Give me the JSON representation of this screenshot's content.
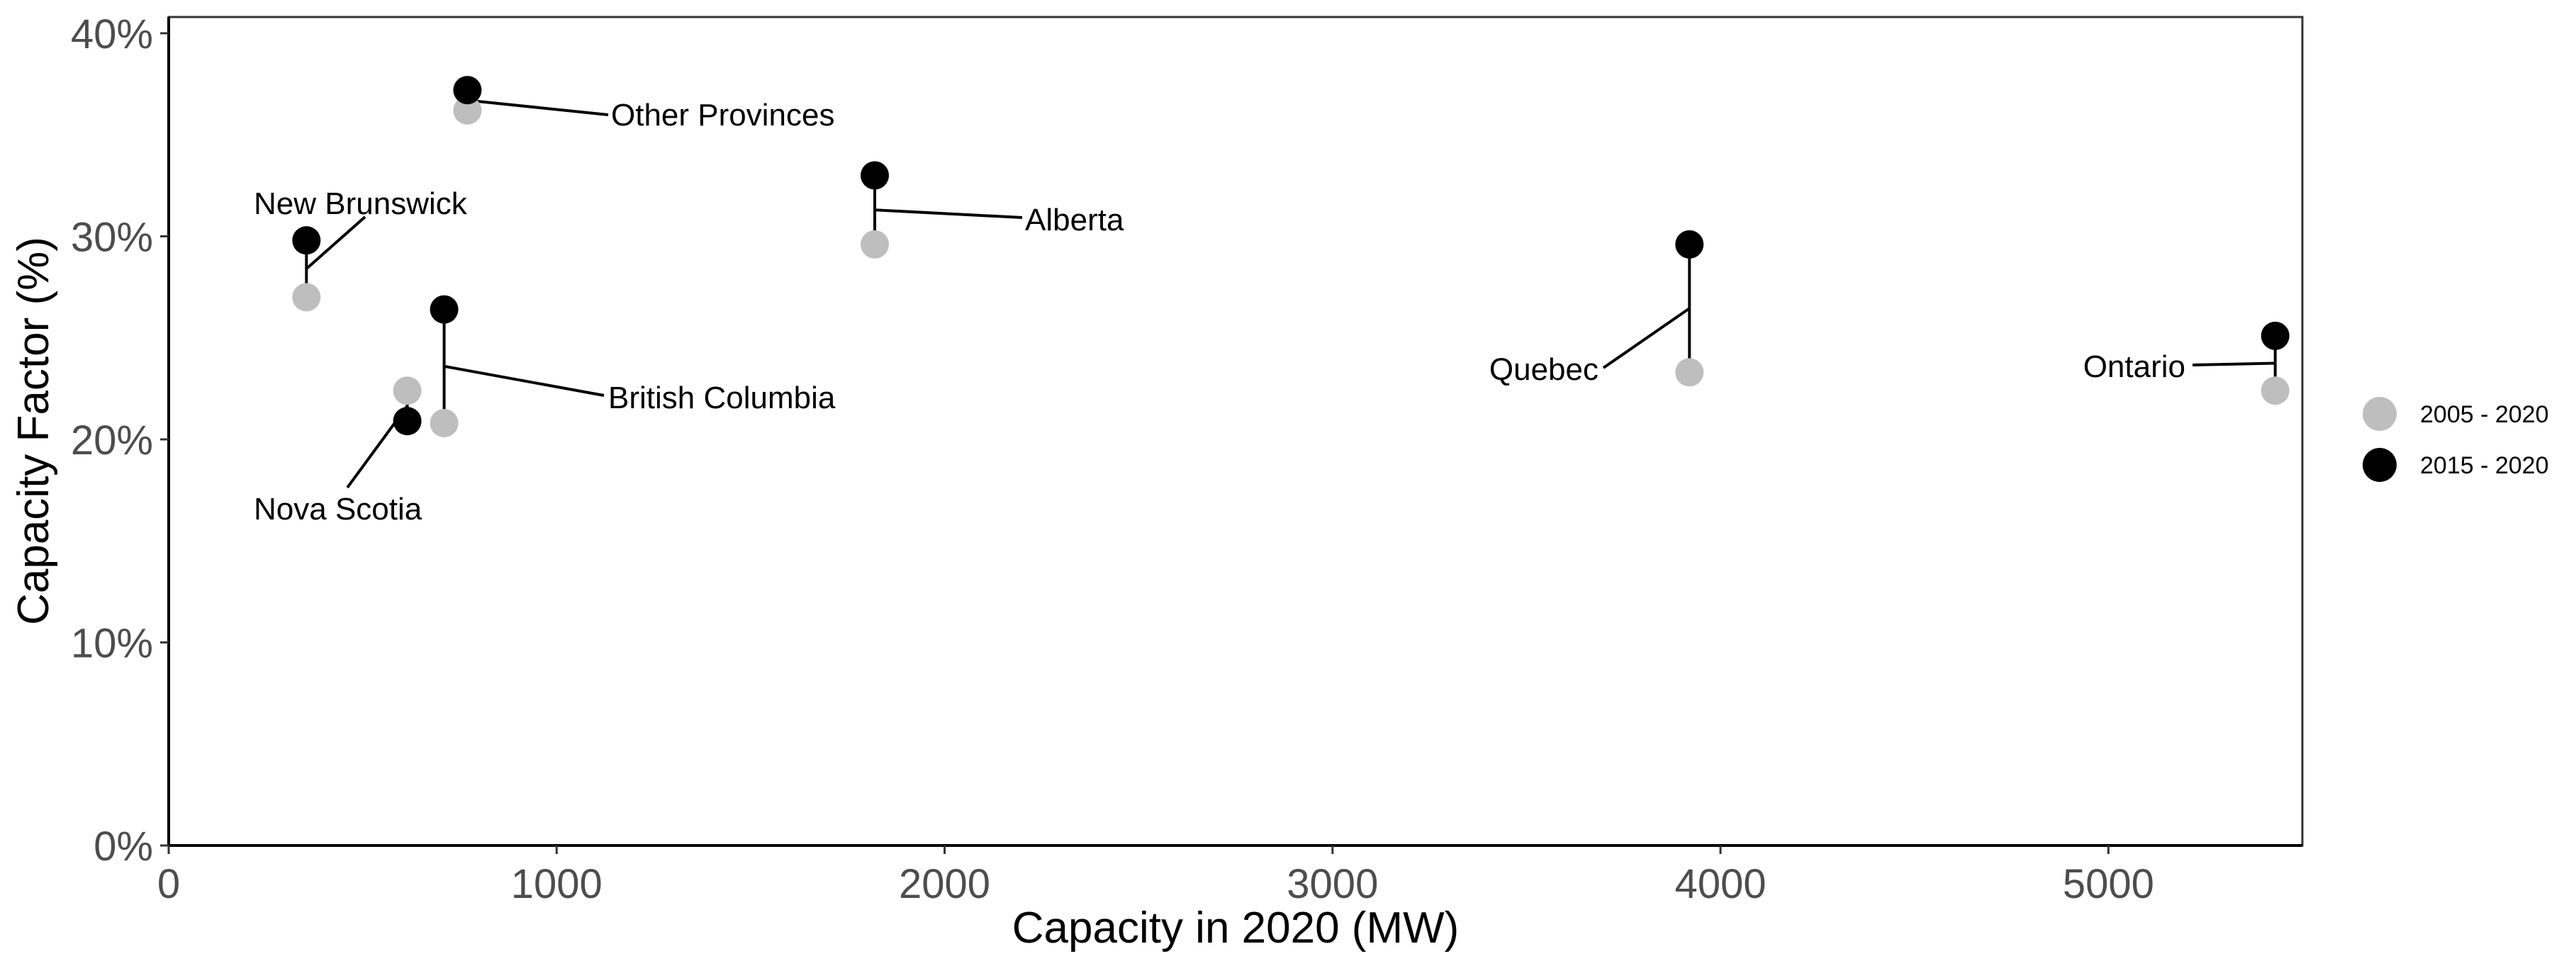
{
  "chart_data": {
    "type": "scatter",
    "title": "",
    "xlabel": "Capacity in 2020 (MW)",
    "ylabel": "Capacity Factor (%)",
    "xlim": [
      0,
      5500
    ],
    "ylim": [
      0,
      40.8
    ],
    "x_ticks": [
      0,
      1000,
      2000,
      3000,
      4000,
      5000
    ],
    "x_tick_labels": [
      "0",
      "1000",
      "2000",
      "3000",
      "4000",
      "5000"
    ],
    "y_ticks": [
      0,
      10,
      20,
      30,
      40
    ],
    "y_tick_labels": [
      "0%",
      "10%",
      "20%",
      "30%",
      "40%"
    ],
    "grid": false,
    "legend_position": "right",
    "series": [
      {
        "name": "2005 - 2020",
        "color": "#bebebe"
      },
      {
        "name": "2015 - 2020",
        "color": "#000000"
      }
    ],
    "provinces": [
      {
        "label": "Other Provinces",
        "capacity": 770,
        "cf_2005_2020": 36.2,
        "cf_2015_2020": 37.2
      },
      {
        "label": "New Brunswick",
        "capacity": 355,
        "cf_2005_2020": 27.0,
        "cf_2015_2020": 29.8
      },
      {
        "label": "Alberta",
        "capacity": 1820,
        "cf_2005_2020": 29.6,
        "cf_2015_2020": 33.0
      },
      {
        "label": "British Columbia",
        "capacity": 710,
        "cf_2005_2020": 20.8,
        "cf_2015_2020": 26.4
      },
      {
        "label": "Nova Scotia",
        "capacity": 615,
        "cf_2005_2020": 22.4,
        "cf_2015_2020": 20.9
      },
      {
        "label": "Quebec",
        "capacity": 3920,
        "cf_2005_2020": 23.3,
        "cf_2015_2020": 29.6
      },
      {
        "label": "Ontario",
        "capacity": 5430,
        "cf_2005_2020": 22.4,
        "cf_2015_2020": 25.1
      }
    ]
  }
}
